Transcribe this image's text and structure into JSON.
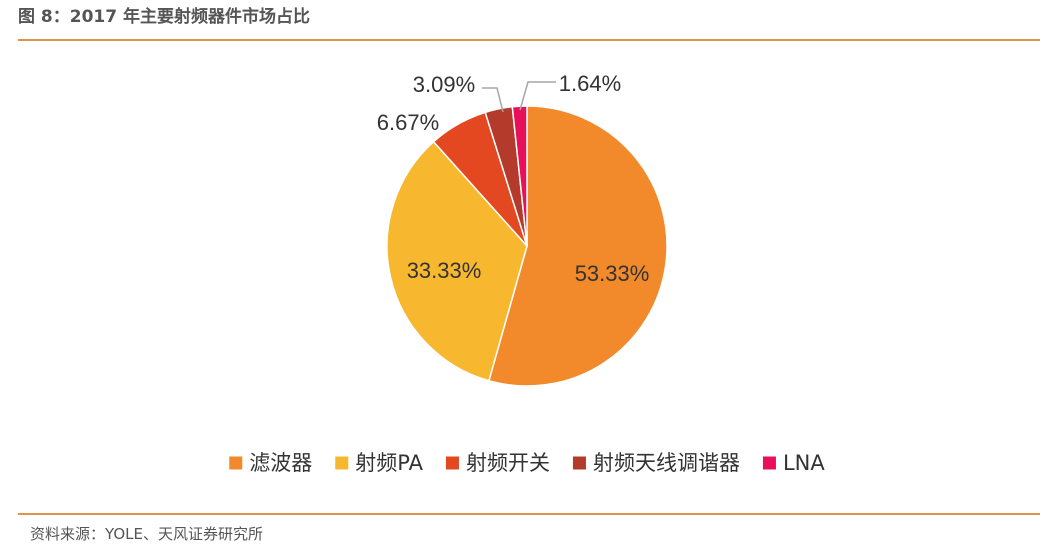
{
  "header": {
    "title": "图 8：2017 年主要射频器件市场占比"
  },
  "footer": {
    "source": "资料来源：YOLE、天风证券研究所"
  },
  "chart_data": {
    "type": "pie",
    "start": "12 o'clock",
    "direction": "clockwise",
    "legend_position": "bottom",
    "slices": [
      {
        "name": "滤波器",
        "value": 53.33,
        "label": "53.33%",
        "color": "#f28a2c",
        "label_placement": "inside"
      },
      {
        "name": "射频PA",
        "value": 33.33,
        "label": "33.33%",
        "color": "#f7b82f",
        "label_placement": "inside"
      },
      {
        "name": "射频开关",
        "value": 6.67,
        "label": "6.67%",
        "color": "#e34820",
        "label_placement": "outside"
      },
      {
        "name": "射频天线调谐器",
        "value": 3.09,
        "label": "3.09%",
        "color": "#b43a2b",
        "label_placement": "outside-leader"
      },
      {
        "name": "LNA",
        "value": 1.64,
        "label": "1.64%",
        "color": "#e8105a",
        "label_placement": "outside-leader"
      }
    ]
  }
}
